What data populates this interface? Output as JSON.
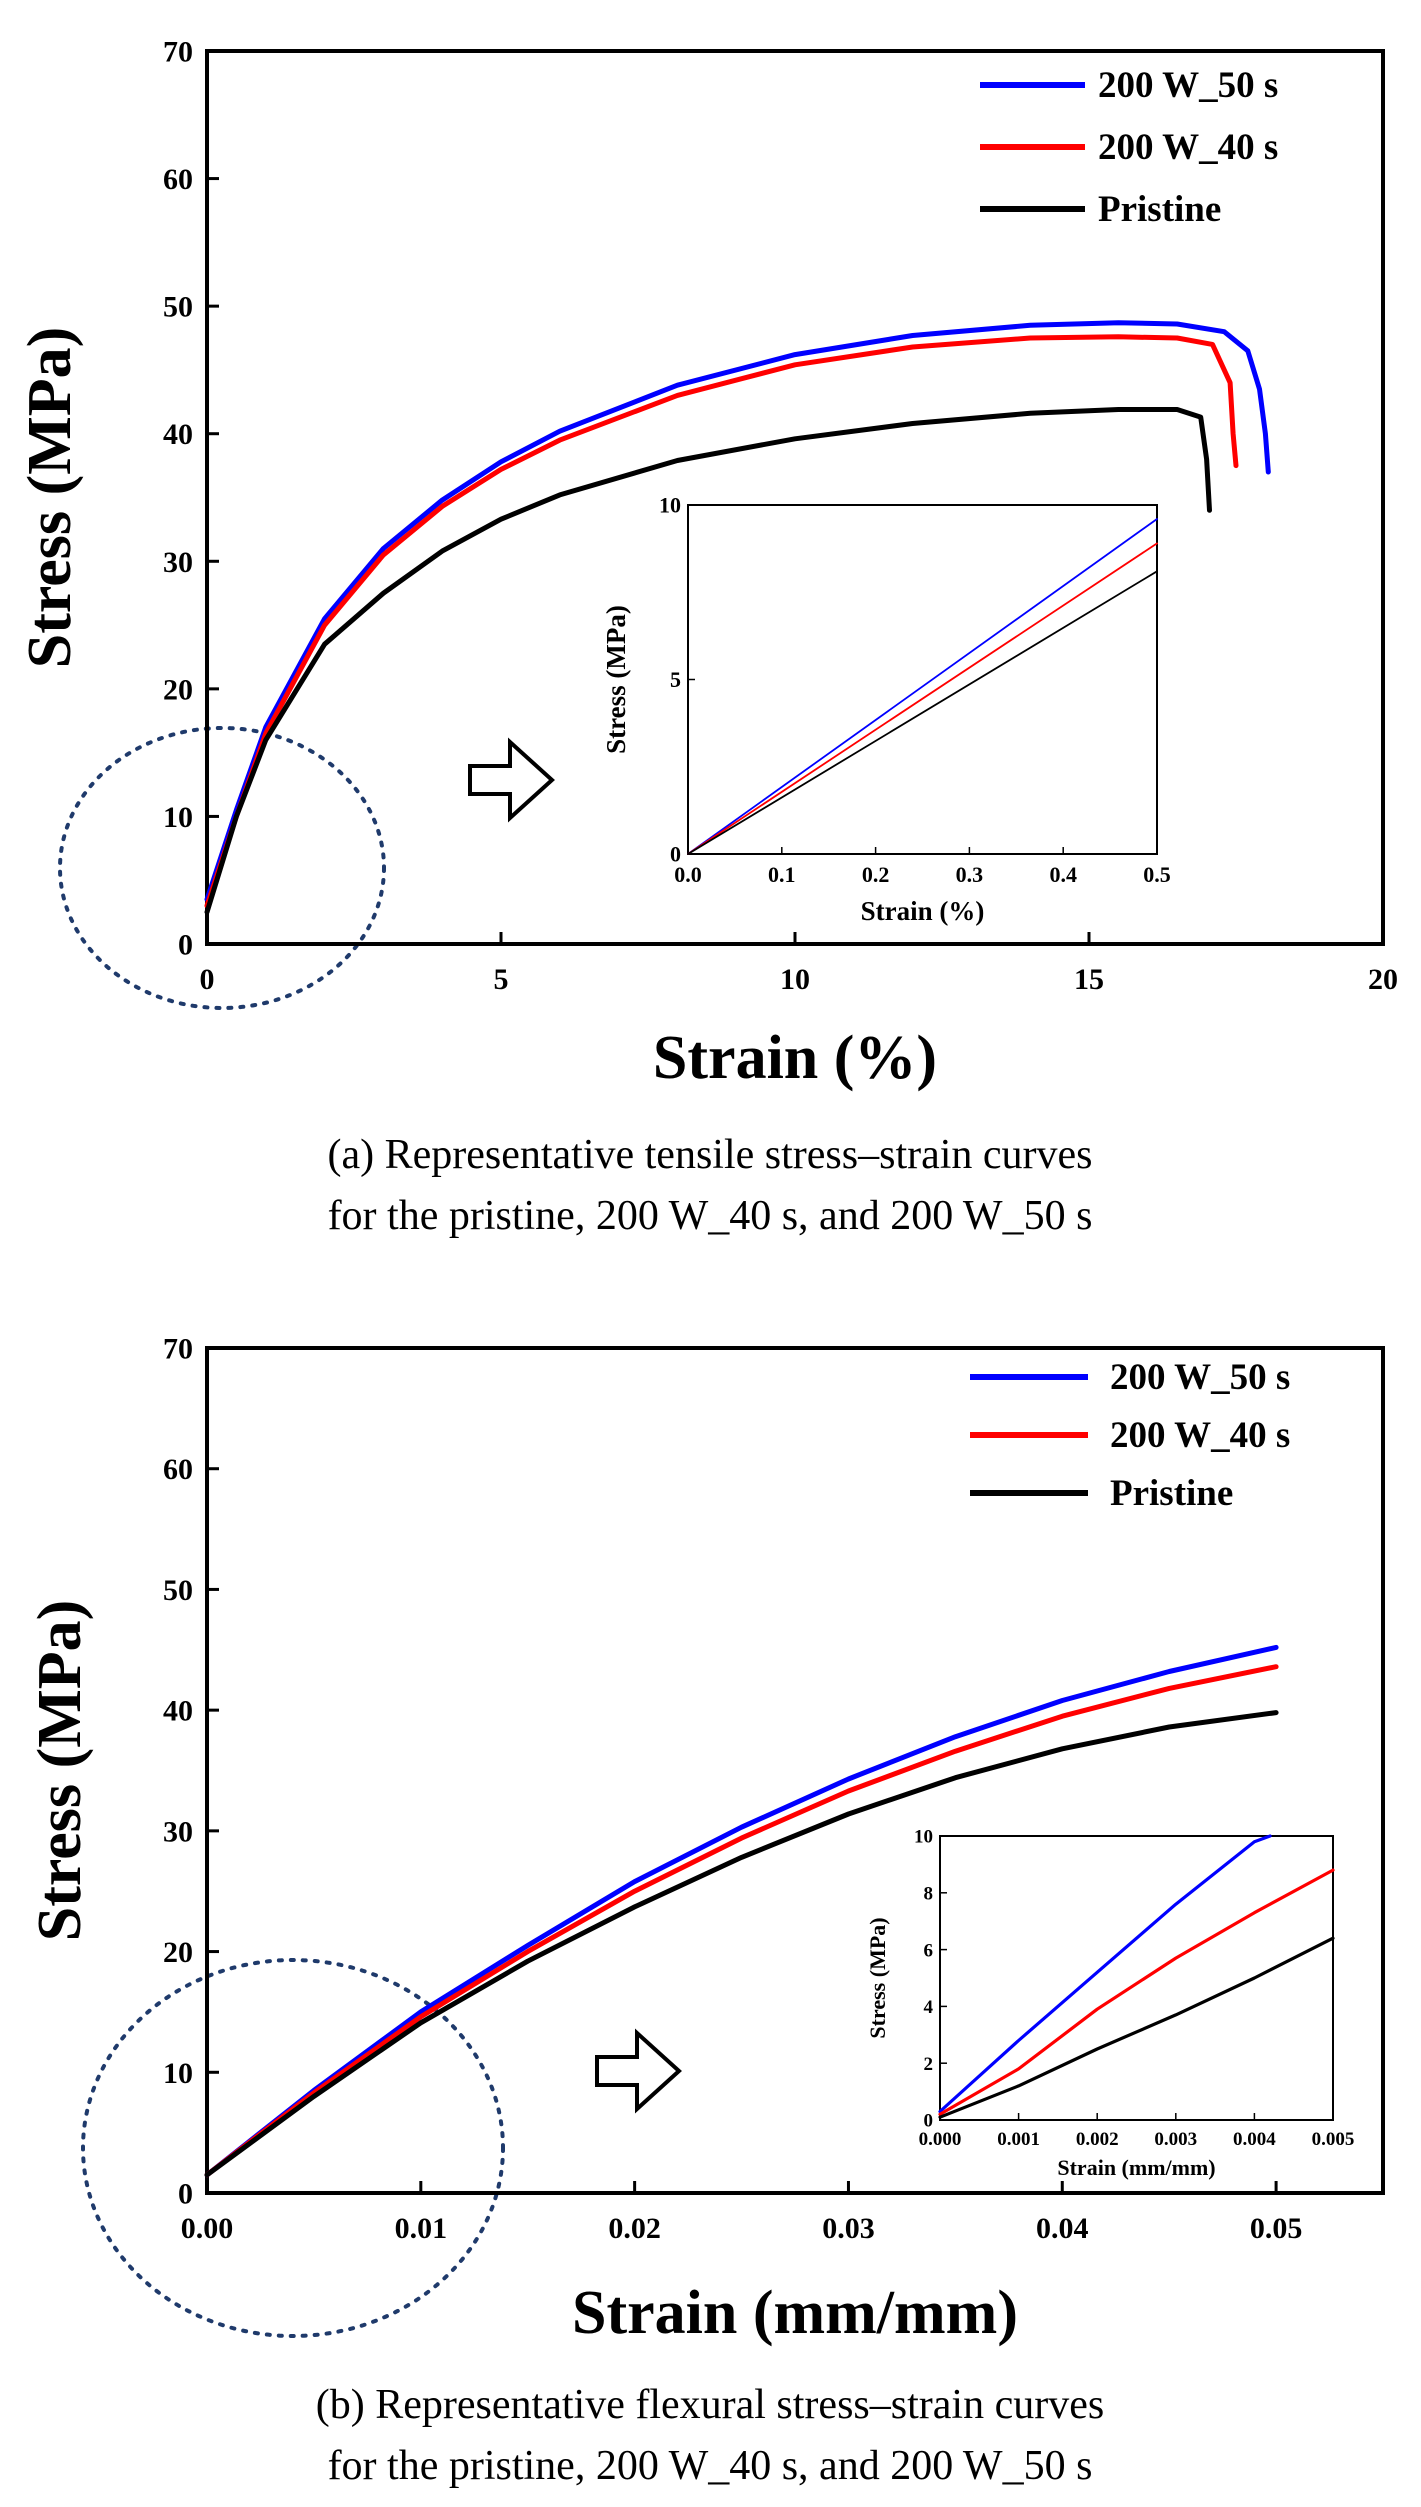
{
  "chart_data": [
    {
      "type": "line",
      "caption": [
        "(a) Representative tensile stress–strain curves",
        "for the pristine, 200 W_40 s, and 200 W_50 s"
      ],
      "xlabel": "Strain (%)",
      "ylabel": "Stress (MPa)",
      "xlim": [
        0,
        20
      ],
      "ylim": [
        0,
        70
      ],
      "xticks": [
        "0",
        "5",
        "10",
        "15",
        "20"
      ],
      "yticks": [
        "0",
        "10",
        "20",
        "30",
        "40",
        "50",
        "60",
        "70"
      ],
      "grid": false,
      "legend_position": "top-right",
      "series": [
        {
          "name": "200 W_50 s",
          "color": "#0000ff",
          "x": [
            0,
            0.5,
            1,
            2,
            3,
            4,
            5,
            6,
            8,
            10,
            12,
            14,
            15.5,
            16.5,
            17.3,
            17.7,
            17.9,
            18.0,
            18.05
          ],
          "y": [
            3.5,
            10.5,
            17,
            25.5,
            31,
            34.8,
            37.8,
            40.2,
            43.8,
            46.2,
            47.7,
            48.5,
            48.7,
            48.6,
            48.0,
            46.5,
            43.5,
            40,
            37
          ]
        },
        {
          "name": "200 W_40 s",
          "color": "#ff0000",
          "x": [
            0,
            0.5,
            1,
            2,
            3,
            4,
            5,
            6,
            8,
            10,
            12,
            14,
            15.5,
            16.5,
            17.1,
            17.4,
            17.45,
            17.5
          ],
          "y": [
            3.0,
            10,
            16.5,
            25,
            30.5,
            34.3,
            37.2,
            39.5,
            43,
            45.4,
            46.8,
            47.5,
            47.6,
            47.5,
            47.0,
            44,
            40,
            37.5
          ]
        },
        {
          "name": "Pristine",
          "color": "#000000",
          "x": [
            0,
            0.5,
            1,
            2,
            3,
            4,
            5,
            6,
            8,
            10,
            12,
            14,
            15.5,
            16.5,
            16.9,
            17.0,
            17.05
          ],
          "y": [
            2.5,
            10,
            16,
            23.5,
            27.5,
            30.8,
            33.3,
            35.2,
            37.9,
            39.6,
            40.8,
            41.6,
            41.9,
            41.9,
            41.3,
            38,
            34
          ]
        }
      ],
      "inset": {
        "xlabel": "Strain (%)",
        "ylabel": "Stress (MPa)",
        "xlim": [
          0,
          0.5
        ],
        "ylim": [
          0,
          10
        ],
        "xticks": [
          "0.0",
          "0.1",
          "0.2",
          "0.3",
          "0.4",
          "0.5"
        ],
        "yticks": [
          "0",
          "5",
          "10"
        ],
        "series": [
          {
            "name": "200 W_50 s",
            "color": "#0000ff",
            "x": [
              0,
              0.5
            ],
            "y": [
              0,
              9.6
            ]
          },
          {
            "name": "200 W_40 s",
            "color": "#ff0000",
            "x": [
              0,
              0.5
            ],
            "y": [
              0,
              8.9
            ]
          },
          {
            "name": "Pristine",
            "color": "#000000",
            "x": [
              0,
              0.5
            ],
            "y": [
              0,
              8.1
            ]
          }
        ]
      }
    },
    {
      "type": "line",
      "caption": [
        "(b) Representative flexural stress–strain curves",
        "for the pristine, 200 W_40 s, and 200 W_50 s"
      ],
      "xlabel": "Strain (mm/mm)",
      "ylabel": "Stress (MPa)",
      "xlim": [
        0,
        0.055
      ],
      "ylim": [
        0,
        70
      ],
      "xticks": [
        "0.00",
        "0.01",
        "0.02",
        "0.03",
        "0.04",
        "0.05"
      ],
      "yticks": [
        "0",
        "10",
        "20",
        "30",
        "40",
        "50",
        "60",
        "70"
      ],
      "grid": false,
      "legend_position": "top-right",
      "series": [
        {
          "name": "200 W_50 s",
          "color": "#0000ff",
          "x": [
            0,
            0.005,
            0.01,
            0.015,
            0.02,
            0.025,
            0.03,
            0.035,
            0.04,
            0.045,
            0.05
          ],
          "y": [
            1.5,
            8.5,
            15,
            20.5,
            25.8,
            30.3,
            34.3,
            37.8,
            40.8,
            43.2,
            45.2
          ]
        },
        {
          "name": "200 W_40 s",
          "color": "#ff0000",
          "x": [
            0,
            0.005,
            0.01,
            0.015,
            0.02,
            0.025,
            0.03,
            0.035,
            0.04,
            0.045,
            0.05
          ],
          "y": [
            1.5,
            8.3,
            14.6,
            20.0,
            25.0,
            29.4,
            33.3,
            36.6,
            39.5,
            41.8,
            43.6
          ]
        },
        {
          "name": "Pristine",
          "color": "#000000",
          "x": [
            0,
            0.005,
            0.01,
            0.015,
            0.02,
            0.025,
            0.03,
            0.035,
            0.04,
            0.045,
            0.05
          ],
          "y": [
            1.5,
            8.0,
            14.1,
            19.2,
            23.7,
            27.8,
            31.4,
            34.4,
            36.8,
            38.6,
            39.8
          ]
        }
      ],
      "inset": {
        "xlabel": "Strain (mm/mm)",
        "ylabel": "Stress (MPa)",
        "xlim": [
          0,
          0.005
        ],
        "ylim": [
          0,
          10
        ],
        "xticks": [
          "0.000",
          "0.001",
          "0.002",
          "0.003",
          "0.004",
          "0.005"
        ],
        "yticks": [
          "0",
          "2",
          "4",
          "6",
          "8",
          "10"
        ],
        "series": [
          {
            "name": "200 W_50 s",
            "color": "#0000ff",
            "x": [
              0,
              0.001,
              0.002,
              0.003,
              0.004,
              0.0042
            ],
            "y": [
              0.3,
              2.8,
              5.2,
              7.6,
              9.8,
              10
            ]
          },
          {
            "name": "200 W_40 s",
            "color": "#ff0000",
            "x": [
              0,
              0.001,
              0.002,
              0.003,
              0.004,
              0.005
            ],
            "y": [
              0.2,
              1.8,
              3.9,
              5.7,
              7.3,
              8.8
            ]
          },
          {
            "name": "Pristine",
            "color": "#000000",
            "x": [
              0,
              0.001,
              0.002,
              0.003,
              0.004,
              0.005
            ],
            "y": [
              0.1,
              1.2,
              2.5,
              3.7,
              5.0,
              6.4
            ]
          }
        ]
      }
    }
  ]
}
